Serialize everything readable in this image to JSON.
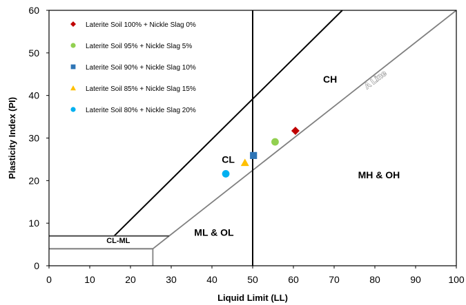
{
  "chart_data": {
    "type": "scatter",
    "xlabel": "Liquid Limit (LL)",
    "ylabel": "Plasticity Index (PI)",
    "xlim": [
      0,
      100
    ],
    "ylim": [
      0,
      60
    ],
    "xticks": [
      "0",
      "10",
      "20",
      "30",
      "40",
      "50",
      "60",
      "70",
      "80",
      "90",
      "100"
    ],
    "yticks": [
      "0",
      "10",
      "20",
      "30",
      "40",
      "50",
      "60"
    ],
    "grid": false,
    "legend_position": "top-left",
    "series": [
      {
        "name": "Laterite Soil 100% + Nickle Slag 0%",
        "marker": "diamond",
        "color": "#c00000",
        "x": [
          60.5
        ],
        "y": [
          31.7
        ]
      },
      {
        "name": "Laterite Soil 95% + Nickle Slag 5%",
        "marker": "circle",
        "color": "#92d050",
        "x": [
          55.5
        ],
        "y": [
          29.1
        ]
      },
      {
        "name": "Laterite Soil 90% + Nickle Slag 10%",
        "marker": "square",
        "color": "#2e75b6",
        "x": [
          50.2
        ],
        "y": [
          25.9
        ]
      },
      {
        "name": "Laterite Soil 85% + Nickle Slag 15%",
        "marker": "triangle",
        "color": "#ffc000",
        "x": [
          48.1
        ],
        "y": [
          24.2
        ]
      },
      {
        "name": "Laterite Soil 80% + Nickle Slag 20%",
        "marker": "circle",
        "color": "#00b0f0",
        "x": [
          43.4
        ],
        "y": [
          21.6
        ]
      }
    ],
    "lines": {
      "a_line": {
        "color": "#808080",
        "points": [
          [
            0,
            4
          ],
          [
            25.5,
            4
          ],
          [
            25.5,
            4
          ],
          [
            100,
            60
          ]
        ]
      },
      "u_line": {
        "color": "#000000",
        "points": [
          [
            16,
            7
          ],
          [
            72,
            60
          ]
        ]
      },
      "ll50": {
        "color": "#000000",
        "points": [
          [
            50,
            0
          ],
          [
            50,
            60
          ]
        ]
      },
      "clml_top": {
        "color": "#404040",
        "points": [
          [
            0,
            7
          ],
          [
            29.5,
            7
          ]
        ]
      },
      "clml_bottom": {
        "color": "#808080",
        "points": [
          [
            0,
            4
          ],
          [
            25.5,
            4
          ],
          [
            25.5,
            0
          ]
        ]
      }
    },
    "annotations": [
      {
        "text": "CH",
        "x": 69,
        "y": 43
      },
      {
        "text": "CL",
        "x": 44,
        "y": 24.2
      },
      {
        "text": "MH & OH",
        "x": 81,
        "y": 20.5
      },
      {
        "text": "ML & OL",
        "x": 40.5,
        "y": 7
      },
      {
        "text": "CL-ML",
        "x": 17,
        "y": 5.3
      },
      {
        "text": "A Line",
        "x": 80.5,
        "y": 43.2,
        "angle": -37
      }
    ]
  }
}
